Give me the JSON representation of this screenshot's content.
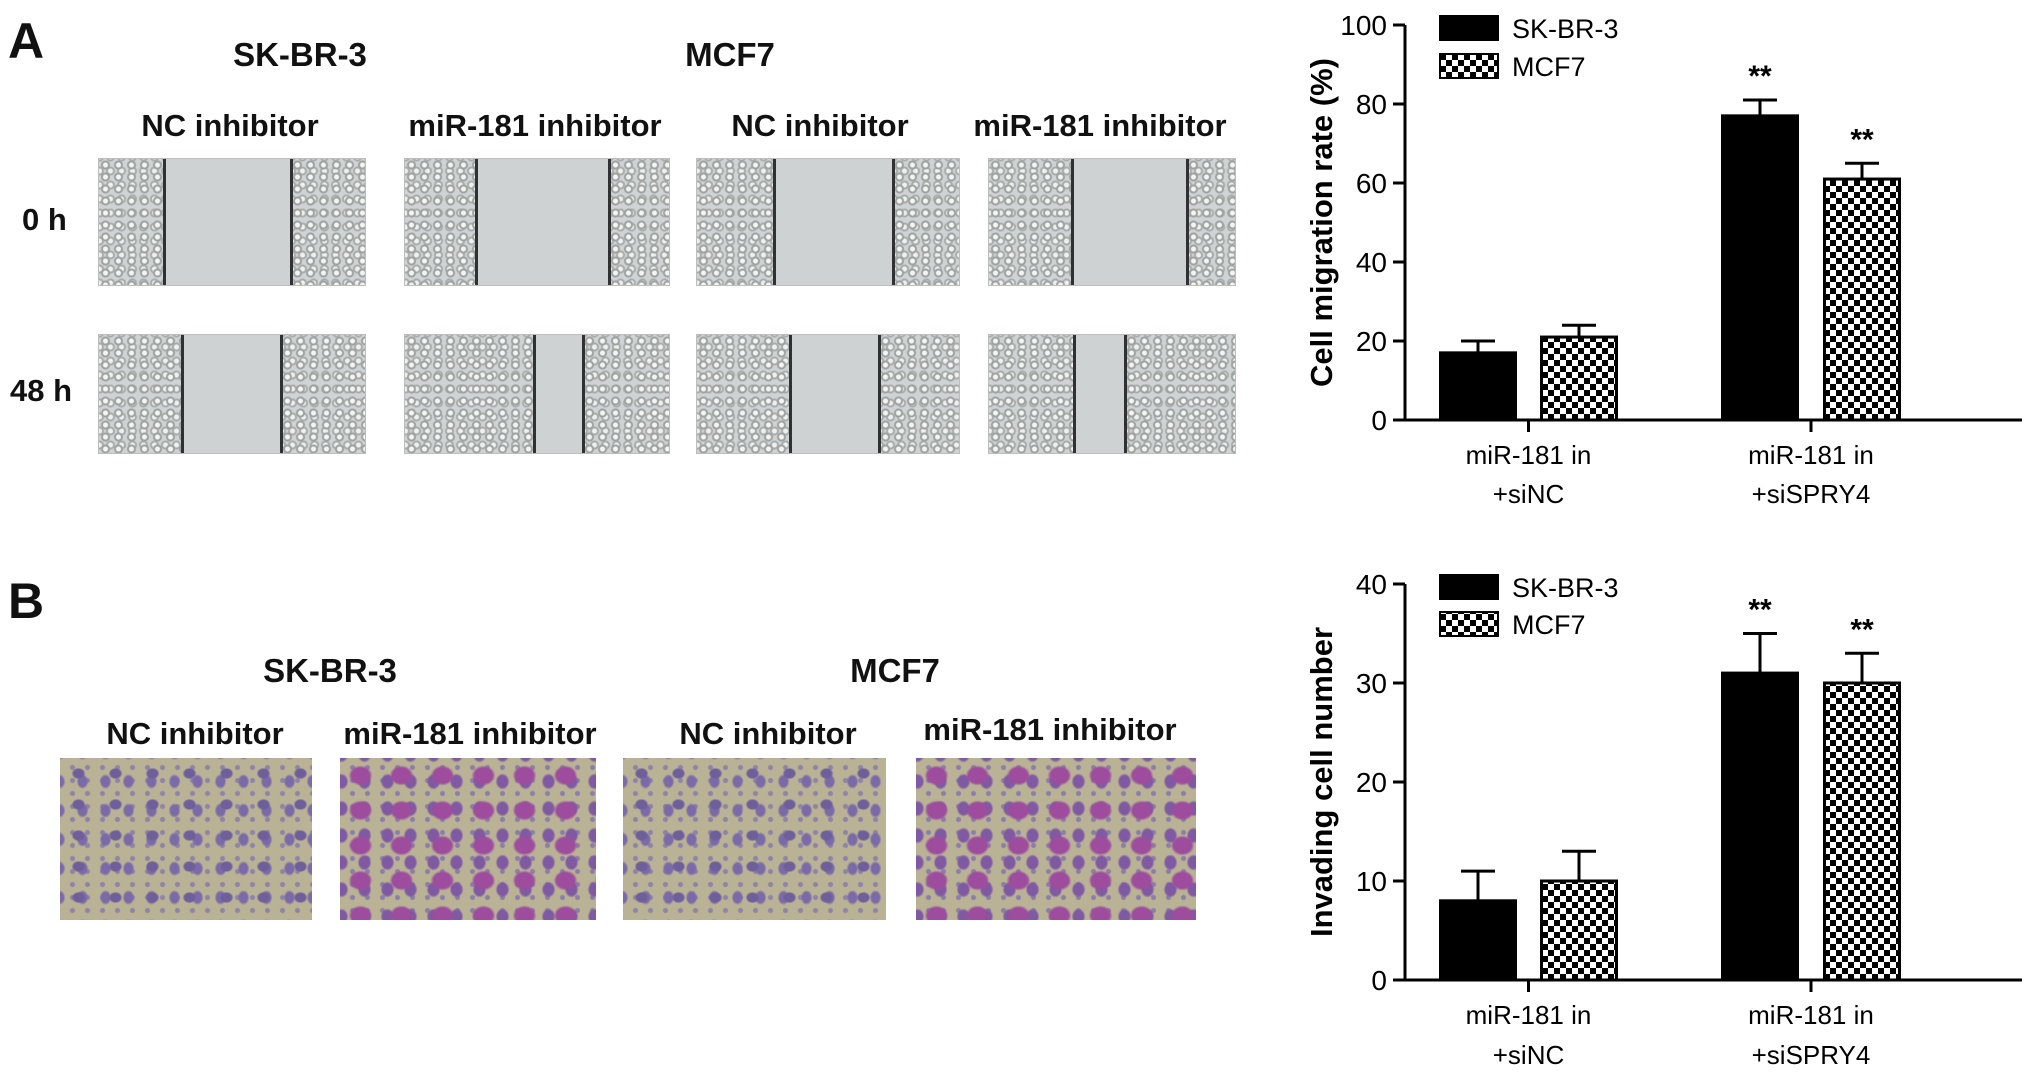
{
  "panel_a": {
    "letter": "A",
    "cell_lines": [
      "SK-BR-3",
      "MCF7"
    ],
    "conditions": [
      "NC inhibitor",
      "miR-181 inhibitor",
      "NC inhibitor",
      "miR-181 inhibitor"
    ],
    "timepoints": [
      "0 h",
      "48 h"
    ]
  },
  "panel_b": {
    "letter": "B",
    "cell_lines": [
      "SK-BR-3",
      "MCF7"
    ],
    "conditions": [
      "NC inhibitor",
      "miR-181 inhibitor",
      "NC inhibitor",
      "miR-181 inhibitor"
    ]
  },
  "colors": {
    "sk_br_3": "#000000",
    "mcf7_pattern": "checkerboard black/white"
  },
  "chart_data": [
    {
      "type": "bar",
      "ylabel": "Cell migration rate (%)",
      "ylim": [
        0,
        100
      ],
      "yticks": [
        0,
        20,
        40,
        60,
        80,
        100
      ],
      "categories": [
        [
          "miR-181 in",
          "+siNC"
        ],
        [
          "miR-181 in",
          "+siSPRY4"
        ]
      ],
      "series": [
        {
          "name": "SK-BR-3",
          "values": [
            17,
            77
          ],
          "errors": [
            3,
            4
          ],
          "fill": "solid"
        },
        {
          "name": "MCF7",
          "values": [
            21,
            61
          ],
          "errors": [
            3,
            4
          ],
          "fill": "checker"
        }
      ],
      "annotations": [
        [
          "",
          ""
        ],
        [
          "**",
          "**"
        ]
      ],
      "legend": "top-left"
    },
    {
      "type": "bar",
      "ylabel": "Invading cell number",
      "ylim": [
        0,
        40
      ],
      "yticks": [
        0,
        10,
        20,
        30,
        40
      ],
      "categories": [
        [
          "miR-181 in",
          "+siNC"
        ],
        [
          "miR-181 in",
          "+siSPRY4"
        ]
      ],
      "series": [
        {
          "name": "SK-BR-3",
          "values": [
            8,
            31
          ],
          "errors": [
            3,
            4
          ],
          "fill": "solid"
        },
        {
          "name": "MCF7",
          "values": [
            10,
            30
          ],
          "errors": [
            3,
            3
          ],
          "fill": "checker"
        }
      ],
      "annotations": [
        [
          "",
          ""
        ],
        [
          "**",
          "**"
        ]
      ],
      "legend": "top-left"
    }
  ]
}
